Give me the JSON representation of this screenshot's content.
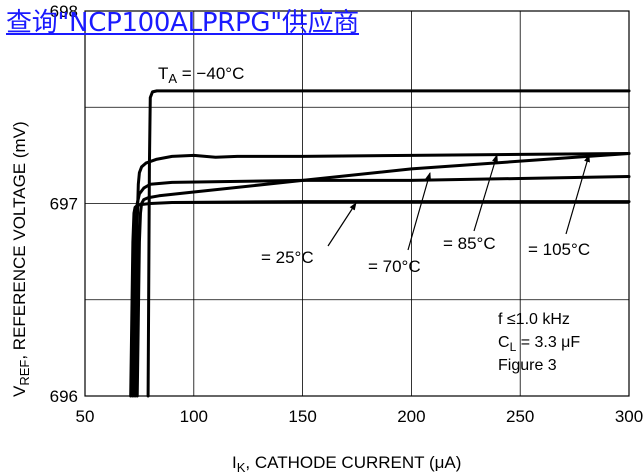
{
  "overlay": {
    "link_text": "查询\"NCP100ALPRPG\"供应商"
  },
  "chart_data": {
    "type": "line",
    "xlabel_main": "I",
    "xlabel_sub": "K",
    "xlabel_rest": ", CATHODE CURRENT (μA)",
    "ylabel_main": "V",
    "ylabel_sub": "REF",
    "ylabel_rest": ", REFERENCE VOLTAGE (mV)",
    "xlim": [
      50,
      300
    ],
    "ylim": [
      696,
      698
    ],
    "xticks": [
      50,
      100,
      150,
      200,
      250,
      300
    ],
    "xtick_labels": [
      "50",
      "100",
      "150",
      "200",
      "250",
      "300"
    ],
    "yticks": [
      696,
      697,
      698
    ],
    "ytick_labels": [
      "696",
      "697",
      "698"
    ],
    "grid": true,
    "series": [
      {
        "name": "T_A = −40°C",
        "x": [
          79,
          79.3,
          79.6,
          80,
          81,
          83,
          90,
          150,
          200,
          250,
          300
        ],
        "y": [
          696,
          696.6,
          697.2,
          697.55,
          697.58,
          697.585,
          697.585,
          697.585,
          697.585,
          697.585,
          697.585
        ]
      },
      {
        "name": "= 25°C",
        "x": [
          71,
          71.5,
          72,
          72.5,
          73,
          74,
          76,
          80,
          90,
          150,
          200,
          250,
          300
        ],
        "y": [
          696,
          696.4,
          696.8,
          696.95,
          696.98,
          696.99,
          696.995,
          697.0,
          697.005,
          697.01,
          697.01,
          697.01,
          697.01
        ]
      },
      {
        "name": "= 70°C",
        "x": [
          74,
          74.5,
          75,
          75.5,
          76,
          77,
          79,
          84,
          100,
          150,
          200,
          250,
          300
        ],
        "y": [
          696,
          696.4,
          696.8,
          696.95,
          697.0,
          697.02,
          697.03,
          697.04,
          697.06,
          697.12,
          697.18,
          697.22,
          697.26
        ]
      },
      {
        "name": "= 85°C",
        "x": [
          72,
          72.5,
          73,
          73.5,
          74,
          75,
          77,
          80,
          90,
          150,
          200,
          250,
          300
        ],
        "y": [
          696,
          696.4,
          696.75,
          696.9,
          697.0,
          697.05,
          697.08,
          697.1,
          697.11,
          697.12,
          697.12,
          697.13,
          697.14
        ]
      },
      {
        "name": "= 105°C",
        "x": [
          73,
          73.5,
          74,
          74.5,
          75,
          76,
          78,
          83,
          90,
          100,
          110,
          120,
          150,
          200,
          250,
          300
        ],
        "y": [
          696,
          696.5,
          696.9,
          697.1,
          697.16,
          697.19,
          697.21,
          697.23,
          697.245,
          697.25,
          697.24,
          697.245,
          697.245,
          697.25,
          697.255,
          697.26
        ]
      }
    ],
    "annotations": {
      "ta_main": "T",
      "ta_sub": "A",
      "ta_rest": " = −40°C",
      "t25": "= 25°C",
      "t70": "= 70°C",
      "t85": "= 85°C",
      "t105": "= 105°C",
      "freq": "f ≤1.0 kHz",
      "cl_main": "C",
      "cl_sub": "L",
      "cl_rest": " = 3.3 μF",
      "figure": "Figure 3"
    },
    "colors": {
      "lines": "#000000",
      "grid": "#000000",
      "overlay_link": "#1a1aff"
    }
  }
}
